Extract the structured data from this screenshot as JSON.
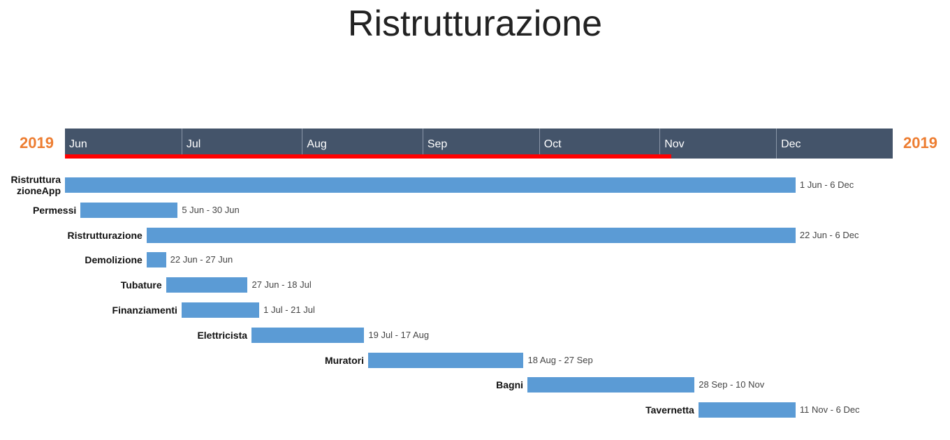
{
  "chart_data": {
    "type": "gantt",
    "title": "Ristrutturazione",
    "year_left": "2019",
    "year_right": "2019",
    "months": [
      "Jun",
      "Jul",
      "Aug",
      "Sep",
      "Oct",
      "Nov",
      "Dec"
    ],
    "axis_start": "2019-06-01",
    "axis_end": "2019-12-31",
    "progress_until": "2019-11-04",
    "colors": {
      "band": "#44546a",
      "bar": "#5b9bd5",
      "progress": "#ff0000",
      "year": "#ed7d31"
    },
    "tasks": [
      {
        "name": "Ristruttura\nzioneApp",
        "start": "2019-06-01",
        "end": "2019-12-06",
        "range": "1 Jun - 6 Dec"
      },
      {
        "name": "Permessi",
        "start": "2019-06-05",
        "end": "2019-06-30",
        "range": "5 Jun - 30 Jun"
      },
      {
        "name": "Ristrutturazione",
        "start": "2019-06-22",
        "end": "2019-12-06",
        "range": "22 Jun - 6 Dec"
      },
      {
        "name": "Demolizione",
        "start": "2019-06-22",
        "end": "2019-06-27",
        "range": "22 Jun - 27 Jun"
      },
      {
        "name": "Tubature",
        "start": "2019-06-27",
        "end": "2019-07-18",
        "range": "27 Jun - 18 Jul"
      },
      {
        "name": "Finanziamenti",
        "start": "2019-07-01",
        "end": "2019-07-21",
        "range": "1 Jul - 21 Jul"
      },
      {
        "name": "Elettricista",
        "start": "2019-07-19",
        "end": "2019-08-17",
        "range": "19 Jul - 17 Aug"
      },
      {
        "name": "Muratori",
        "start": "2019-08-18",
        "end": "2019-09-27",
        "range": "18 Aug - 27 Sep"
      },
      {
        "name": "Bagni",
        "start": "2019-09-28",
        "end": "2019-11-10",
        "range": "28 Sep - 10 Nov"
      },
      {
        "name": "Tavernetta",
        "start": "2019-11-11",
        "end": "2019-12-06",
        "range": "11 Nov - 6 Dec"
      }
    ]
  }
}
